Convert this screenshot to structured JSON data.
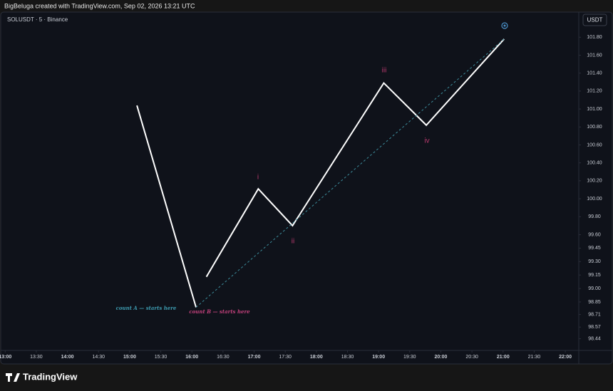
{
  "header": {
    "caption": "BigBeluga created with TradingView.com, Sep 02, 2026 13:21 UTC",
    "brand": "TradingView"
  },
  "chart_data": {
    "type": "line",
    "title": "SOLUSDT · 5 · Binance",
    "currency": "USDT",
    "x": [
      "15:07",
      "16:04",
      "16:10",
      "16:14",
      "17:04",
      "17:37",
      "19:05",
      "19:46",
      "21:01"
    ],
    "series": [
      {
        "color": "#ffffff",
        "values": [
          101.04,
          98.79,
          null,
          99.13,
          100.11,
          99.7,
          101.29,
          100.82,
          101.78
        ]
      }
    ],
    "trend_color": "#3d8d9c",
    "annotations": [
      {
        "text": "i",
        "color": "#b83a6e"
      },
      {
        "text": "ii",
        "color": "#b83a6e"
      },
      {
        "text": "iii",
        "color": "#b83a6e"
      },
      {
        "text": "iv",
        "color": "#b83a6e"
      },
      {
        "text": "count A — starts here",
        "color": "#3d9bb0"
      },
      {
        "text": "count B — starts here",
        "color": "#c0407a"
      }
    ],
    "xlim": [
      "12:55",
      "22:13"
    ],
    "xticks": [
      "13:00",
      "13:30",
      "14:00",
      "14:30",
      "15:00",
      "15:30",
      "16:00",
      "16:30",
      "17:00",
      "17:30",
      "18:00",
      "18:30",
      "19:00",
      "19:30",
      "20:00",
      "20:30",
      "21:00",
      "21:30",
      "22:00"
    ],
    "ylim": [
      98.31,
      102.08
    ],
    "yticks": [
      {
        "value": 101.8,
        "label": "101.80"
      },
      {
        "value": 101.6,
        "label": "101.60"
      },
      {
        "value": 101.4,
        "label": "101.40"
      },
      {
        "value": 101.2,
        "label": "101.20"
      },
      {
        "value": 101,
        "label": "101.00"
      },
      {
        "value": 100.8,
        "label": "100.80"
      },
      {
        "value": 100.6,
        "label": "100.60"
      },
      {
        "value": 100.4,
        "label": "100.40"
      },
      {
        "value": 100.2,
        "label": "100.20"
      },
      {
        "value": 100,
        "label": "100.00"
      },
      {
        "value": 99.8,
        "label": "99.80"
      },
      {
        "value": 99.6,
        "label": "99.60"
      },
      99.45,
      {
        "value": 99.3,
        "label": "99.30"
      },
      99.15,
      {
        "value": 99,
        "label": "99.00"
      },
      98.85,
      98.71,
      98.57,
      98.44
    ]
  }
}
